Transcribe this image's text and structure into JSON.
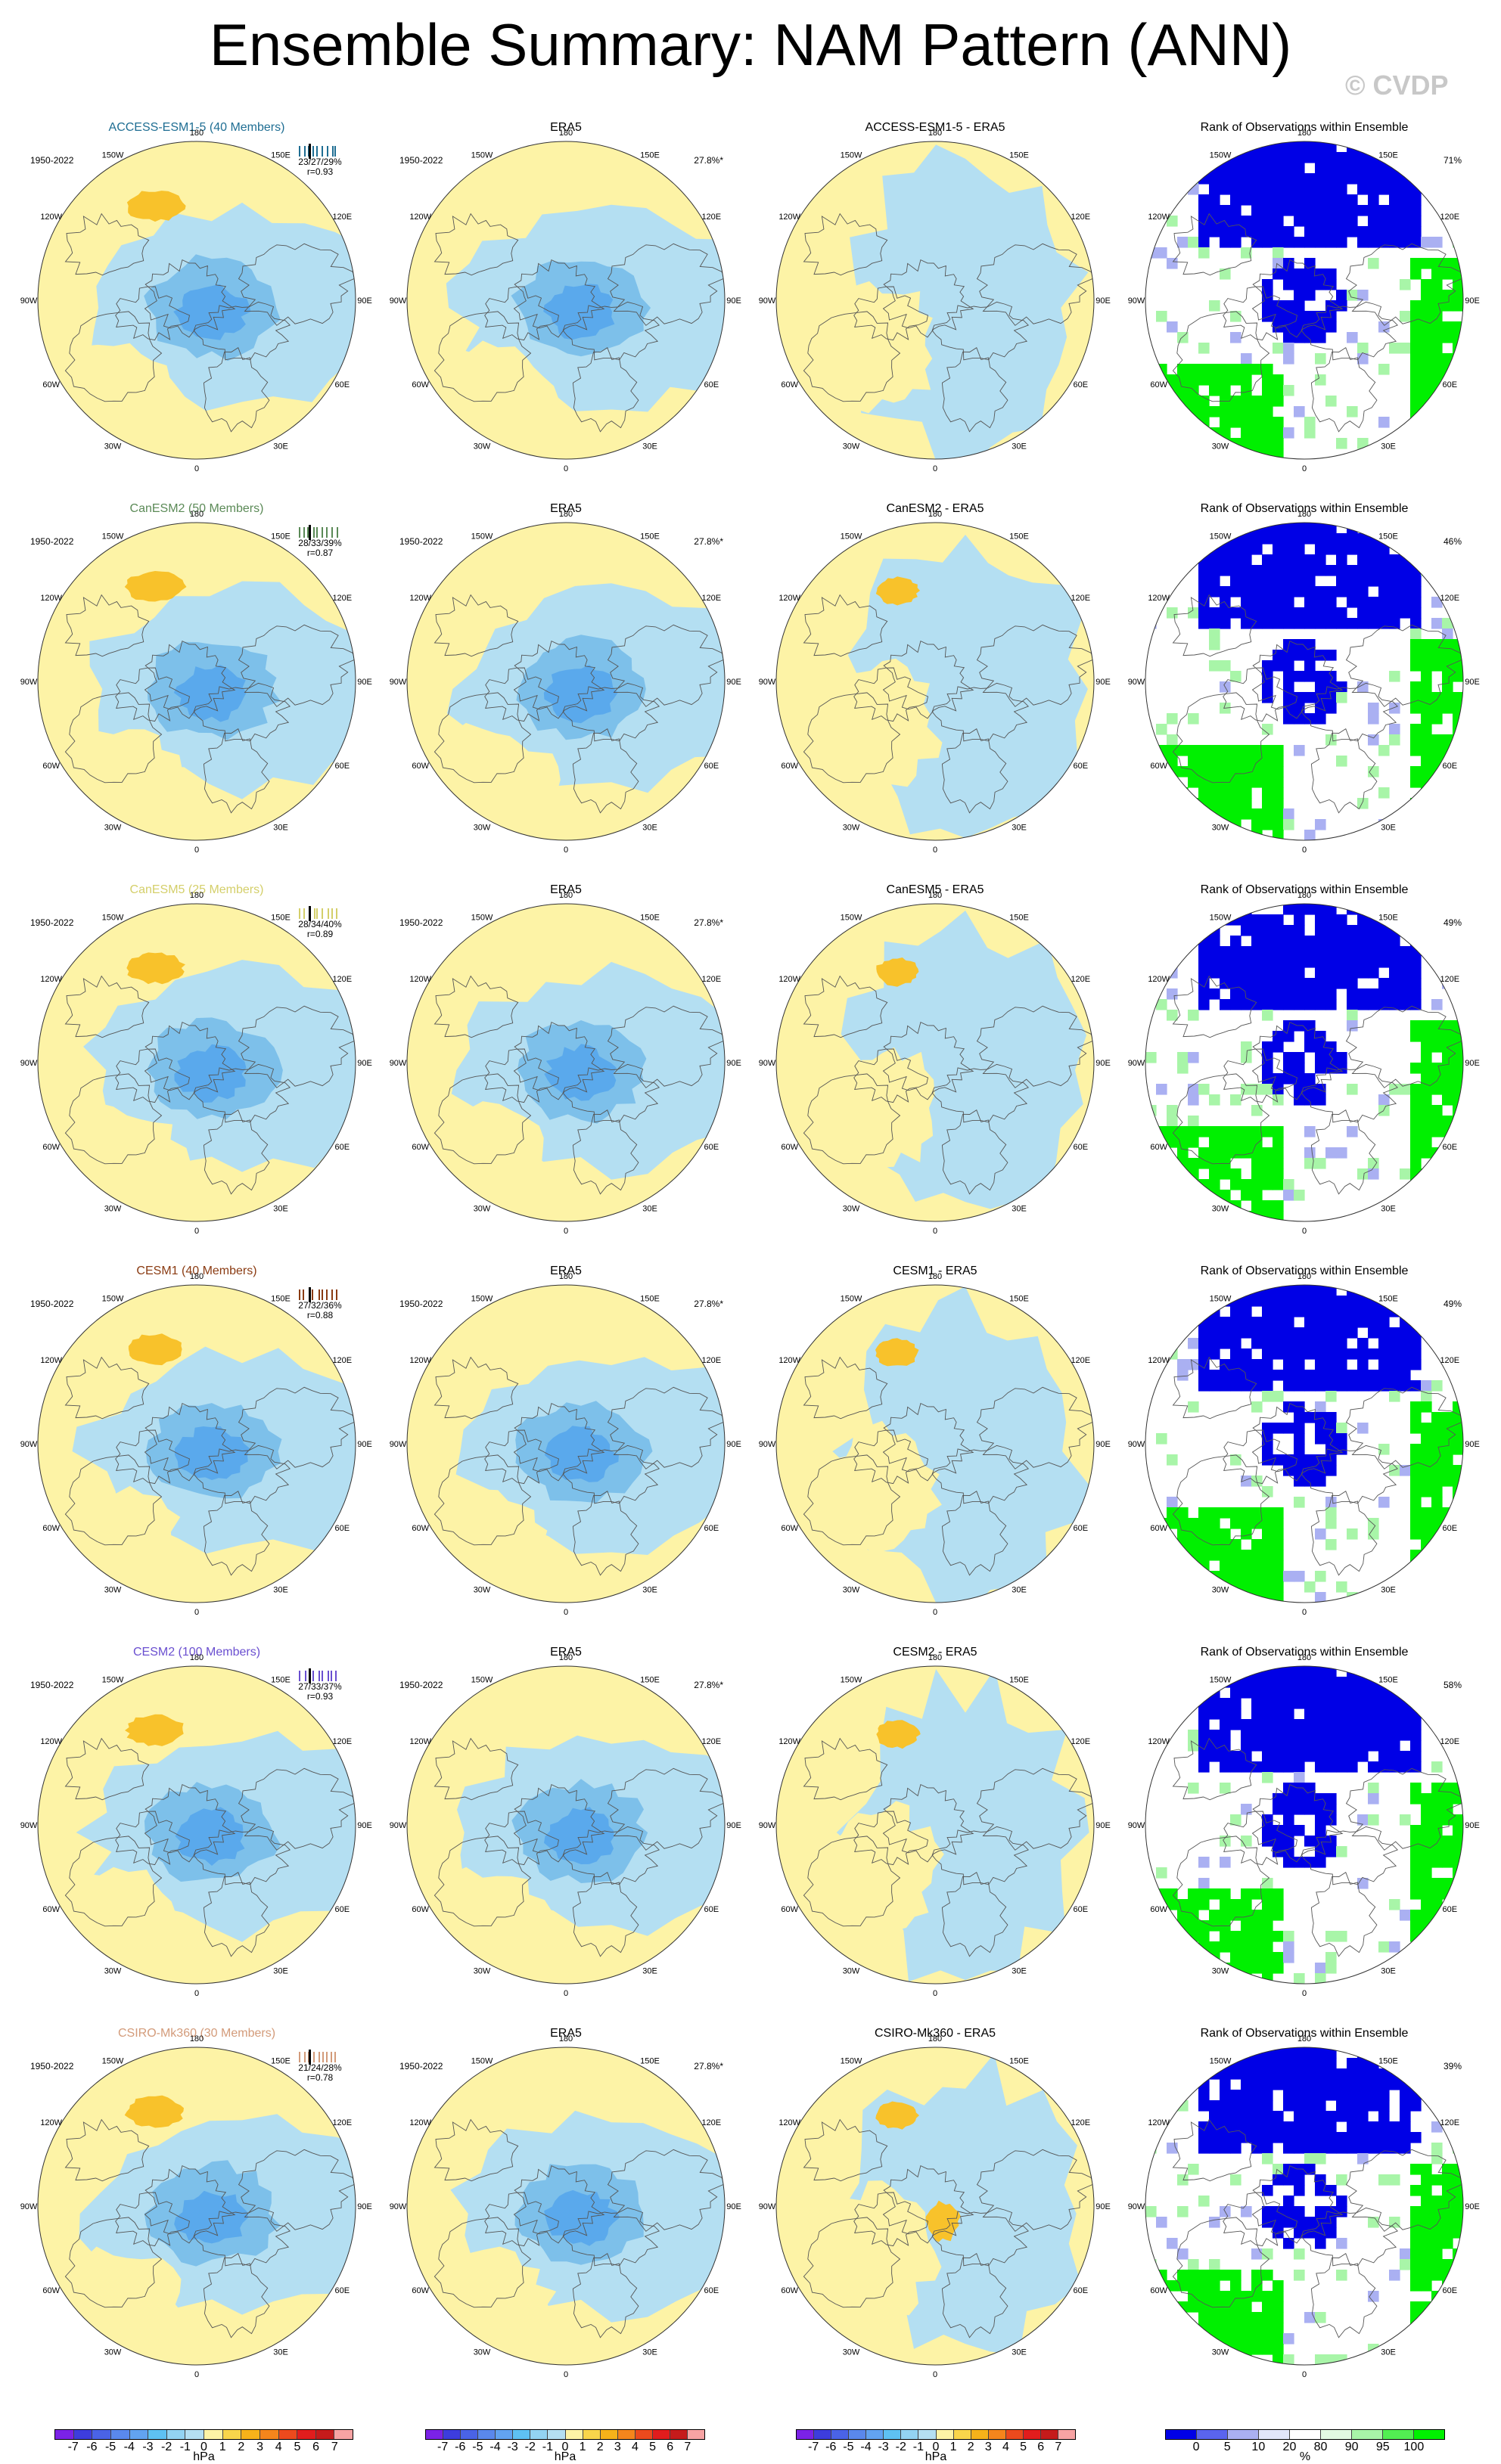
{
  "title": "Ensemble Summary: NAM Pattern (ANN)",
  "watermark": "© CVDP",
  "period": "1950-2022",
  "obs_percent": "27.8%*",
  "obs_title": "ERA5",
  "rank_title": "Rank of Observations within Ensemble",
  "longitude_labels": [
    "180",
    "150E",
    "120E",
    "90E",
    "60E",
    "30E",
    "0",
    "30W",
    "60W",
    "90W",
    "120W",
    "150W"
  ],
  "colors": {
    "positive": "#fdf3a6",
    "positive_strong": "#f8c22b",
    "negative": "#b4dff2",
    "negative_mid": "#7dc0ea",
    "negative_strong": "#5aa9ec",
    "rank_blue": "#0000e6",
    "rank_lightblue": "#aab0f2",
    "rank_green": "#00f000",
    "rank_lightgreen": "#a8f5a8"
  },
  "rows": [
    {
      "model": "ACCESS-ESM1-5 (40 Members)",
      "color": "#1f6e93",
      "stats": "23/27/29%",
      "r": "r=0.93",
      "diff_title": "ACCESS-ESM1-5 - ERA5",
      "rank_pct": "71%"
    },
    {
      "model": "CanESM2 (50 Members)",
      "color": "#5b8a57",
      "stats": "28/33/39%",
      "r": "r=0.87",
      "diff_title": "CanESM2 - ERA5",
      "rank_pct": "46%"
    },
    {
      "model": "CanESM5 (25 Members)",
      "color": "#d4cf6a",
      "stats": "28/34/40%",
      "r": "r=0.89",
      "diff_title": "CanESM5 - ERA5",
      "rank_pct": "49%"
    },
    {
      "model": "CESM1 (40 Members)",
      "color": "#8a3b12",
      "stats": "27/32/36%",
      "r": "r=0.88",
      "diff_title": "CESM1 - ERA5",
      "rank_pct": "49%"
    },
    {
      "model": "CESM2 (100 Members)",
      "color": "#6a4fd0",
      "stats": "27/33/37%",
      "r": "r=0.93",
      "diff_title": "CESM2 - ERA5",
      "rank_pct": "58%"
    },
    {
      "model": "CSIRO-Mk360 (30 Members)",
      "color": "#d39b7a",
      "stats": "21/24/28%",
      "r": "r=0.78",
      "diff_title": "CSIRO-Mk360 - ERA5",
      "rank_pct": "39%"
    }
  ],
  "colorbars": {
    "hpa_ticks": [
      "-7",
      "-6",
      "-5",
      "-4",
      "-3",
      "-2",
      "-1",
      "0",
      "1",
      "2",
      "3",
      "4",
      "5",
      "6",
      "7"
    ],
    "hpa_unit": "hPa",
    "hpa_colors": [
      "#7b22e6",
      "#3d3ddd",
      "#4a63e6",
      "#5a88ec",
      "#62a3f0",
      "#5ec1f2",
      "#93d3f2",
      "#b4dff2",
      "#fdf3a6",
      "#f9d54b",
      "#f6b21a",
      "#f5851c",
      "#ec4a1d",
      "#e11d1d",
      "#c51b1b",
      "#f7a3a3"
    ],
    "rank_ticks": [
      "0",
      "5",
      "10",
      "20",
      "80",
      "90",
      "95",
      "100"
    ],
    "rank_unit": "%",
    "rank_colors": [
      "#0000e6",
      "#5a64ee",
      "#aab0f2",
      "#e2e6fa",
      "#ffffff",
      "#e2fae2",
      "#a8f5a8",
      "#52ee52",
      "#00f000"
    ]
  },
  "chart_data": [
    {
      "type": "heatmap",
      "title": "ACCESS-ESM1-5 (40 Members)",
      "subtitle": "1950-2022",
      "units": "hPa",
      "stats": "23/27/29%",
      "pattern_correlation": 0.93
    },
    {
      "type": "heatmap",
      "title": "ERA5",
      "subtitle": "1950-2022",
      "units": "hPa",
      "percent_variance": "27.8%*"
    },
    {
      "type": "heatmap",
      "title": "ACCESS-ESM1-5 - ERA5",
      "units": "hPa"
    },
    {
      "type": "heatmap",
      "title": "Rank of Observations within Ensemble",
      "units": "%",
      "percent": "71%"
    },
    {
      "type": "heatmap",
      "title": "CanESM2 (50 Members)",
      "subtitle": "1950-2022",
      "units": "hPa",
      "stats": "28/33/39%",
      "pattern_correlation": 0.87
    },
    {
      "type": "heatmap",
      "title": "CanESM2 - ERA5",
      "units": "hPa"
    },
    {
      "type": "heatmap",
      "title": "Rank of Observations within Ensemble",
      "units": "%",
      "percent": "46%"
    },
    {
      "type": "heatmap",
      "title": "CanESM5 (25 Members)",
      "subtitle": "1950-2022",
      "units": "hPa",
      "stats": "28/34/40%",
      "pattern_correlation": 0.89
    },
    {
      "type": "heatmap",
      "title": "CanESM5 - ERA5",
      "units": "hPa"
    },
    {
      "type": "heatmap",
      "title": "Rank of Observations within Ensemble",
      "units": "%",
      "percent": "49%"
    },
    {
      "type": "heatmap",
      "title": "CESM1 (40 Members)",
      "subtitle": "1950-2022",
      "units": "hPa",
      "stats": "27/32/36%",
      "pattern_correlation": 0.88
    },
    {
      "type": "heatmap",
      "title": "CESM1 - ERA5",
      "units": "hPa"
    },
    {
      "type": "heatmap",
      "title": "Rank of Observations within Ensemble",
      "units": "%",
      "percent": "49%"
    },
    {
      "type": "heatmap",
      "title": "CESM2 (100 Members)",
      "subtitle": "1950-2022",
      "units": "hPa",
      "stats": "27/33/37%",
      "pattern_correlation": 0.93
    },
    {
      "type": "heatmap",
      "title": "CESM2 - ERA5",
      "units": "hPa"
    },
    {
      "type": "heatmap",
      "title": "Rank of Observations within Ensemble",
      "units": "%",
      "percent": "58%"
    },
    {
      "type": "heatmap",
      "title": "CSIRO-Mk360 (30 Members)",
      "subtitle": "1950-2022",
      "units": "hPa",
      "stats": "21/24/28%",
      "pattern_correlation": 0.78
    },
    {
      "type": "heatmap",
      "title": "CSIRO-Mk360 - ERA5",
      "units": "hPa"
    },
    {
      "type": "heatmap",
      "title": "Rank of Observations within Ensemble",
      "units": "%",
      "percent": "39%"
    }
  ]
}
